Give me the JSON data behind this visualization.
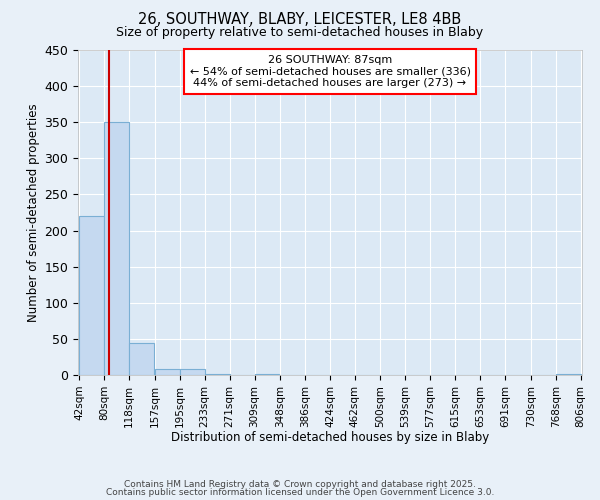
{
  "title1": "26, SOUTHWAY, BLABY, LEICESTER, LE8 4BB",
  "title2": "Size of property relative to semi-detached houses in Blaby",
  "xlabel": "Distribution of semi-detached houses by size in Blaby",
  "ylabel": "Number of semi-detached properties",
  "bar_left_edges": [
    42,
    80,
    118,
    157,
    195,
    233,
    271,
    309,
    348,
    386,
    424,
    462,
    500,
    539,
    577,
    615,
    653,
    691,
    730,
    768
  ],
  "bar_heights": [
    220,
    350,
    45,
    9,
    8,
    1,
    0,
    1,
    0,
    0,
    0,
    0,
    0,
    0,
    0,
    0,
    0,
    0,
    0,
    2
  ],
  "bin_width": 38,
  "bar_color": "#c5d9f0",
  "bar_edge_color": "#7aafd4",
  "background_color": "#dce9f5",
  "fig_background_color": "#e8f0f8",
  "property_size": 87,
  "red_line_color": "#cc0000",
  "ylim": [
    0,
    450
  ],
  "yticks": [
    0,
    50,
    100,
    150,
    200,
    250,
    300,
    350,
    400,
    450
  ],
  "xtick_labels": [
    "42sqm",
    "80sqm",
    "118sqm",
    "157sqm",
    "195sqm",
    "233sqm",
    "271sqm",
    "309sqm",
    "348sqm",
    "386sqm",
    "424sqm",
    "462sqm",
    "500sqm",
    "539sqm",
    "577sqm",
    "615sqm",
    "653sqm",
    "691sqm",
    "730sqm",
    "768sqm",
    "806sqm"
  ],
  "annotation_title": "26 SOUTHWAY: 87sqm",
  "annotation_line1": "← 54% of semi-detached houses are smaller (336)",
  "annotation_line2": "44% of semi-detached houses are larger (273) →",
  "footer1": "Contains HM Land Registry data © Crown copyright and database right 2025.",
  "footer2": "Contains public sector information licensed under the Open Government Licence 3.0."
}
